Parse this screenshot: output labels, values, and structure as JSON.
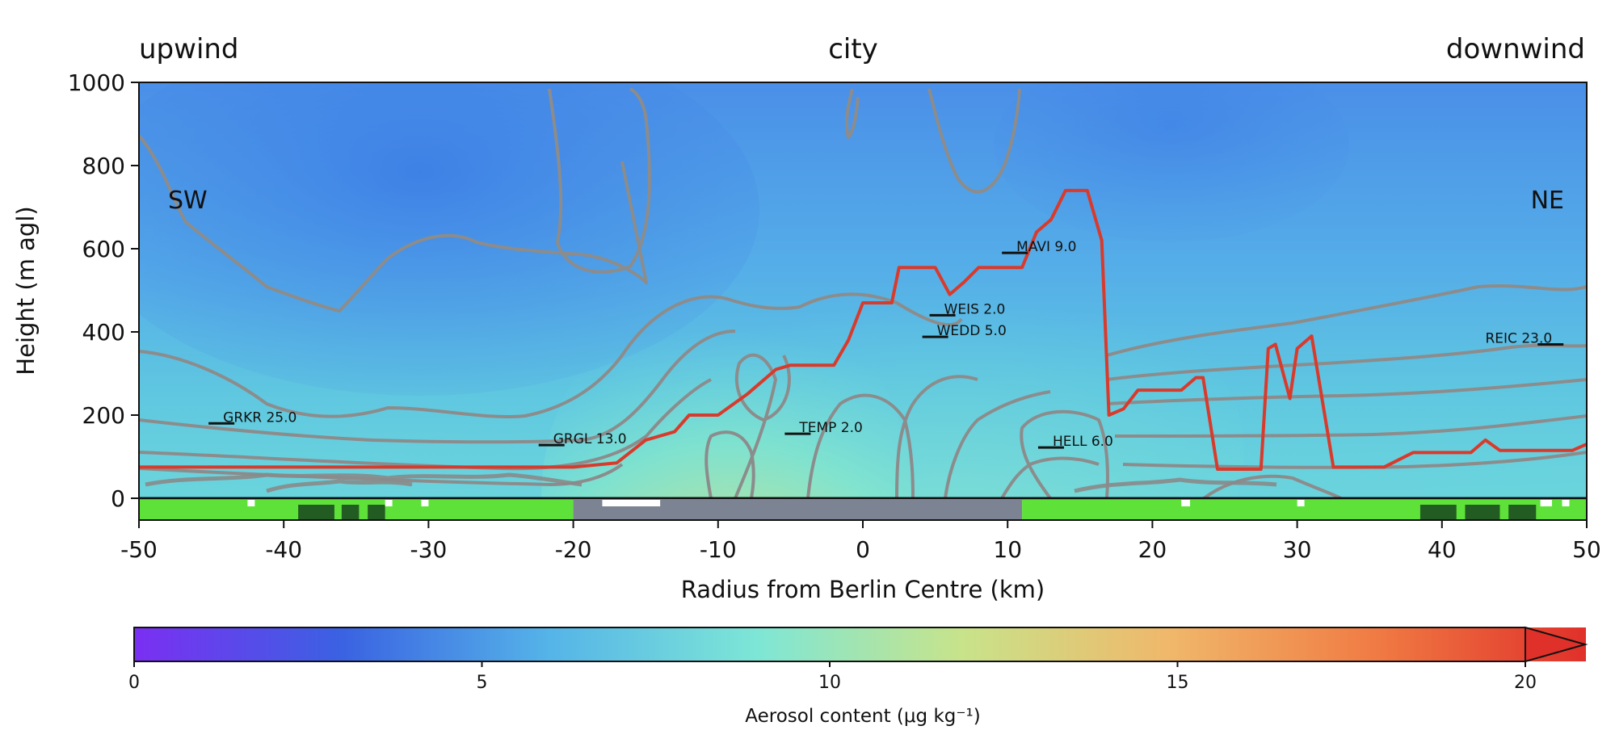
{
  "chart_data": {
    "type": "heatmap",
    "title": "",
    "top_labels": {
      "left": "upwind",
      "center": "city",
      "right": "downwind"
    },
    "direction_labels": {
      "left": "SW",
      "right": "NE"
    },
    "xlabel": "Radius from Berlin Centre (km)",
    "ylabel": "Height (m agl)",
    "xlim": [
      -50,
      50
    ],
    "ylim": [
      0,
      1000
    ],
    "xticks": [
      -50,
      -40,
      -30,
      -20,
      -10,
      0,
      10,
      20,
      30,
      40,
      50
    ],
    "yticks": [
      0,
      200,
      400,
      600,
      800,
      1000
    ],
    "colorbar": {
      "label": "Aerosol content (μg kg⁻¹)",
      "min": 0,
      "max": 20,
      "ticks": [
        0,
        5,
        10,
        15,
        20
      ],
      "extend": "max",
      "colors": [
        "#7b2ff2",
        "#3a62e2",
        "#55b4e8",
        "#7ee6d6",
        "#c8e38a",
        "#f0b76a",
        "#f07a43",
        "#e0302a"
      ]
    },
    "boundary_layer_height": {
      "color": "#d93a2b",
      "points": [
        [
          -50,
          75
        ],
        [
          -20,
          75
        ],
        [
          -17,
          85
        ],
        [
          -15,
          140
        ],
        [
          -13,
          160
        ],
        [
          -12,
          200
        ],
        [
          -10,
          200
        ],
        [
          -9,
          225
        ],
        [
          -8,
          250
        ],
        [
          -7,
          280
        ],
        [
          -6,
          310
        ],
        [
          -5,
          320
        ],
        [
          -2,
          320
        ],
        [
          -1,
          380
        ],
        [
          0,
          470
        ],
        [
          2,
          470
        ],
        [
          2.5,
          555
        ],
        [
          5,
          555
        ],
        [
          6,
          490
        ],
        [
          7,
          520
        ],
        [
          8,
          555
        ],
        [
          11,
          555
        ],
        [
          12,
          640
        ],
        [
          13,
          670
        ],
        [
          14,
          740
        ],
        [
          15.5,
          740
        ],
        [
          16.5,
          620
        ],
        [
          17,
          200
        ],
        [
          18,
          215
        ],
        [
          19,
          260
        ],
        [
          22,
          260
        ],
        [
          23,
          290
        ],
        [
          23.5,
          290
        ],
        [
          24.5,
          70
        ],
        [
          27.5,
          70
        ],
        [
          28,
          360
        ],
        [
          28.5,
          370
        ],
        [
          29.5,
          240
        ],
        [
          30,
          360
        ],
        [
          31,
          390
        ],
        [
          32.5,
          75
        ],
        [
          36,
          75
        ],
        [
          38,
          110
        ],
        [
          42,
          110
        ],
        [
          43,
          140
        ],
        [
          44,
          115
        ],
        [
          49,
          115
        ],
        [
          50,
          130
        ]
      ]
    },
    "stations": [
      {
        "name": "GRKR 25.0",
        "x": -44.3,
        "height": 180
      },
      {
        "name": "GRGL 13.0",
        "x": -21.5,
        "height": 128
      },
      {
        "name": "TEMP 2.0",
        "x": -4.5,
        "height": 155
      },
      {
        "name": "WEIS 2.0",
        "x": 5.5,
        "height": 440
      },
      {
        "name": "WEDD 5.0",
        "x": 5,
        "height": 388
      },
      {
        "name": "MAVI 9.0",
        "x": 10.5,
        "height": 590
      },
      {
        "name": "HELL 6.0",
        "x": 13,
        "height": 122
      },
      {
        "name": "REIC 23.0",
        "x": 47.5,
        "height": 370
      }
    ],
    "land_cover_strip": [
      {
        "from": -50,
        "to": -20,
        "class": "green"
      },
      {
        "from": -20,
        "to": 11,
        "class": "urban"
      },
      {
        "from": 11,
        "to": 50,
        "class": "green"
      }
    ],
    "land_cover_colors": {
      "green": "#5ee23a",
      "forest": "#225c22",
      "urban": "#7c8392"
    }
  }
}
